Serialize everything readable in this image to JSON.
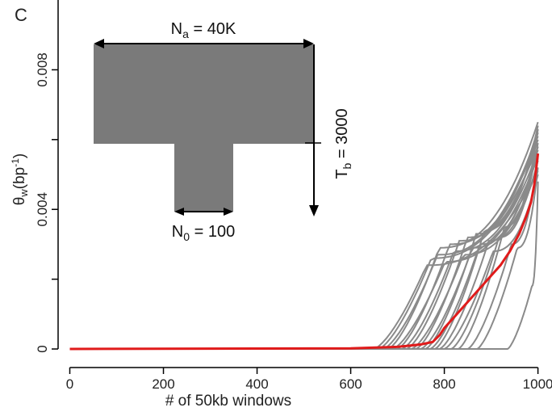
{
  "panel_label": "C",
  "chart_data": {
    "type": "line",
    "xlabel": "# of 50kb windows",
    "ylabel_main": "θ",
    "ylabel_sub": "w",
    "ylabel_unit_open": "(bp",
    "ylabel_unit_sup": "-1",
    "ylabel_unit_close": ")",
    "xlim": [
      -25,
      1030
    ],
    "ylim": [
      -0.0003,
      0.01
    ],
    "x_ticks": [
      0,
      200,
      400,
      600,
      800,
      1000
    ],
    "x_tick_labels": [
      "0",
      "200",
      "400",
      "600",
      "800",
      "1000"
    ],
    "y_ticks": [
      0,
      0.002,
      0.004,
      0.006,
      0.008
    ],
    "y_tick_labels": [
      "0",
      "",
      "0.004",
      "",
      "0.008"
    ],
    "simulation_color": "#8a8a8a",
    "mean_color": "#e01b1b",
    "simulations": [
      {
        "start": 650,
        "knee": 0.32,
        "plateau": 0.0024,
        "end": 0.0051
      },
      {
        "start": 660,
        "knee": 0.33,
        "plateau": 0.0026,
        "end": 0.0058
      },
      {
        "start": 670,
        "knee": 0.35,
        "plateau": 0.0027,
        "end": 0.0062
      },
      {
        "start": 680,
        "knee": 0.34,
        "plateau": 0.0029,
        "end": 0.0065
      },
      {
        "start": 690,
        "knee": 0.36,
        "plateau": 0.0025,
        "end": 0.0055
      },
      {
        "start": 700,
        "knee": 0.37,
        "plateau": 0.003,
        "end": 0.0061
      },
      {
        "start": 710,
        "knee": 0.38,
        "plateau": 0.0028,
        "end": 0.0057
      },
      {
        "start": 720,
        "knee": 0.4,
        "plateau": 0.0031,
        "end": 0.0063
      },
      {
        "start": 730,
        "knee": 0.41,
        "plateau": 0.0027,
        "end": 0.0052
      },
      {
        "start": 740,
        "knee": 0.42,
        "plateau": 0.0032,
        "end": 0.006
      },
      {
        "start": 750,
        "knee": 0.44,
        "plateau": 0.0029,
        "end": 0.0056
      },
      {
        "start": 760,
        "knee": 0.45,
        "plateau": 0.0033,
        "end": 0.0062
      },
      {
        "start": 770,
        "knee": 0.46,
        "plateau": 0.003,
        "end": 0.0058
      },
      {
        "start": 780,
        "knee": 0.48,
        "plateau": 0.0034,
        "end": 0.0064
      },
      {
        "start": 790,
        "knee": 0.5,
        "plateau": 0.0031,
        "end": 0.0054
      },
      {
        "start": 800,
        "knee": 0.52,
        "plateau": 0.0028,
        "end": 0.005
      },
      {
        "start": 815,
        "knee": 0.55,
        "plateau": 0.0032,
        "end": 0.0059
      },
      {
        "start": 830,
        "knee": 0.58,
        "plateau": 0.0035,
        "end": 0.0063
      },
      {
        "start": 850,
        "knee": 0.62,
        "plateau": 0.003,
        "end": 0.0055
      },
      {
        "start": 870,
        "knee": 0.66,
        "plateau": 0.0029,
        "end": 0.0052
      },
      {
        "start": 935,
        "knee": 0.8,
        "plateau": 0.0018,
        "end": 0.0048
      }
    ],
    "mean": {
      "x": [
        0,
        600,
        700,
        750,
        775,
        790,
        800,
        820,
        840,
        860,
        880,
        900,
        920,
        940,
        960,
        975,
        985,
        992,
        1000
      ],
      "y": [
        0,
        2e-05,
        6e-05,
        0.00013,
        0.0002,
        0.0004,
        0.0006,
        0.0009,
        0.0012,
        0.0015,
        0.0018,
        0.0021,
        0.0024,
        0.0028,
        0.0033,
        0.0038,
        0.0042,
        0.0047,
        0.0056
      ]
    }
  },
  "inset": {
    "na_label_main": "N",
    "na_label_sub": "a",
    "na_label_value": " = 40K",
    "n0_label_main": "N",
    "n0_label_sub": "0",
    "n0_label_value": " = 100",
    "tb_label_main": "T",
    "tb_label_sub": "b",
    "tb_label_value": " = 3000",
    "fill_color": "#7a7a7a"
  }
}
